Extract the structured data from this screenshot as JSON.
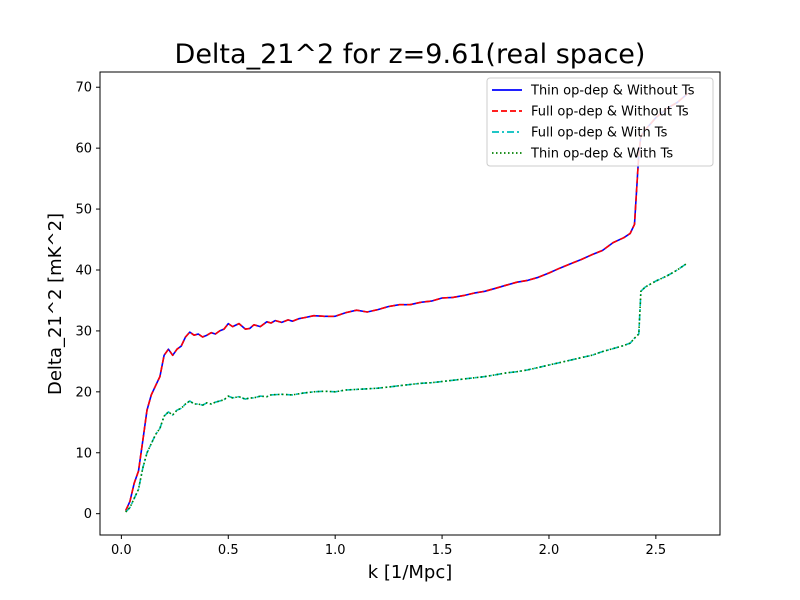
{
  "chart_data": {
    "type": "line",
    "title": "Delta_21^2 for z=9.61(real space)",
    "xlabel": "k [1/Mpc]",
    "ylabel": "Delta_21^2 [mK^2]",
    "xlim": [
      -0.1,
      2.8
    ],
    "ylim": [
      -3.5,
      72.5
    ],
    "xticks": [
      0.0,
      0.5,
      1.0,
      1.5,
      2.0,
      2.5
    ],
    "xtick_labels": [
      "0.0",
      "0.5",
      "1.0",
      "1.5",
      "2.0",
      "2.5"
    ],
    "yticks": [
      0,
      10,
      20,
      30,
      40,
      50,
      60,
      70
    ],
    "ytick_labels": [
      "0",
      "10",
      "20",
      "30",
      "40",
      "50",
      "60",
      "70"
    ],
    "grid": false,
    "legend_position": "top-right",
    "series": [
      {
        "name": "Thin op-dep & Without Ts",
        "color": "#0000ff",
        "dash": "solid",
        "x": [
          0.02,
          0.04,
          0.06,
          0.08,
          0.1,
          0.12,
          0.14,
          0.16,
          0.18,
          0.2,
          0.22,
          0.24,
          0.26,
          0.28,
          0.3,
          0.32,
          0.34,
          0.36,
          0.38,
          0.4,
          0.42,
          0.44,
          0.46,
          0.48,
          0.5,
          0.52,
          0.55,
          0.58,
          0.6,
          0.62,
          0.65,
          0.68,
          0.7,
          0.72,
          0.75,
          0.78,
          0.8,
          0.83,
          0.86,
          0.9,
          0.95,
          1.0,
          1.05,
          1.1,
          1.15,
          1.2,
          1.25,
          1.3,
          1.35,
          1.4,
          1.45,
          1.5,
          1.55,
          1.6,
          1.65,
          1.7,
          1.75,
          1.8,
          1.85,
          1.9,
          1.95,
          2.0,
          2.05,
          2.1,
          2.15,
          2.2,
          2.25,
          2.3,
          2.35,
          2.38,
          2.4,
          2.42,
          2.43,
          2.45,
          2.5,
          2.55,
          2.6,
          2.65
        ],
        "y": [
          0.5,
          2.0,
          5.0,
          7.0,
          12.0,
          17.0,
          19.5,
          21.0,
          22.5,
          26.0,
          27.0,
          26.0,
          27.0,
          27.5,
          29.0,
          29.8,
          29.3,
          29.5,
          29.0,
          29.3,
          29.7,
          29.5,
          30.0,
          30.3,
          31.2,
          30.7,
          31.2,
          30.3,
          30.4,
          31.0,
          30.7,
          31.5,
          31.3,
          31.7,
          31.4,
          31.8,
          31.6,
          32.0,
          32.2,
          32.5,
          32.4,
          32.4,
          33.0,
          33.4,
          33.1,
          33.5,
          34.0,
          34.3,
          34.3,
          34.7,
          34.9,
          35.4,
          35.5,
          35.8,
          36.2,
          36.5,
          37.0,
          37.5,
          38.0,
          38.3,
          38.8,
          39.5,
          40.3,
          41.0,
          41.7,
          42.5,
          43.2,
          44.5,
          45.3,
          46.0,
          47.5,
          59.0,
          62.0,
          63.0,
          65.0,
          66.5,
          67.5,
          69.0
        ]
      },
      {
        "name": "Full op-dep & Without Ts",
        "color": "#ff0000",
        "dash": "dashed",
        "x": [
          0.02,
          0.04,
          0.06,
          0.08,
          0.1,
          0.12,
          0.14,
          0.16,
          0.18,
          0.2,
          0.22,
          0.24,
          0.26,
          0.28,
          0.3,
          0.32,
          0.34,
          0.36,
          0.38,
          0.4,
          0.42,
          0.44,
          0.46,
          0.48,
          0.5,
          0.52,
          0.55,
          0.58,
          0.6,
          0.62,
          0.65,
          0.68,
          0.7,
          0.72,
          0.75,
          0.78,
          0.8,
          0.83,
          0.86,
          0.9,
          0.95,
          1.0,
          1.05,
          1.1,
          1.15,
          1.2,
          1.25,
          1.3,
          1.35,
          1.4,
          1.45,
          1.5,
          1.55,
          1.6,
          1.65,
          1.7,
          1.75,
          1.8,
          1.85,
          1.9,
          1.95,
          2.0,
          2.05,
          2.1,
          2.15,
          2.2,
          2.25,
          2.3,
          2.35,
          2.38,
          2.4,
          2.42,
          2.43,
          2.45,
          2.5,
          2.55,
          2.6,
          2.65
        ],
        "y": [
          0.5,
          2.0,
          5.0,
          7.0,
          12.0,
          17.0,
          19.5,
          21.0,
          22.5,
          26.0,
          27.0,
          26.0,
          27.0,
          27.5,
          29.0,
          29.8,
          29.3,
          29.5,
          29.0,
          29.3,
          29.7,
          29.5,
          30.0,
          30.3,
          31.2,
          30.7,
          31.2,
          30.3,
          30.4,
          31.0,
          30.7,
          31.5,
          31.3,
          31.7,
          31.4,
          31.8,
          31.6,
          32.0,
          32.2,
          32.5,
          32.4,
          32.4,
          33.0,
          33.4,
          33.1,
          33.5,
          34.0,
          34.3,
          34.3,
          34.7,
          34.9,
          35.4,
          35.5,
          35.8,
          36.2,
          36.5,
          37.0,
          37.5,
          38.0,
          38.3,
          38.8,
          39.5,
          40.3,
          41.0,
          41.7,
          42.5,
          43.2,
          44.5,
          45.3,
          46.0,
          47.5,
          59.0,
          62.0,
          63.0,
          65.0,
          66.5,
          67.5,
          69.0
        ]
      },
      {
        "name": "Full op-dep & With Ts",
        "color": "#00bfbf",
        "dash": "dashdot",
        "x": [
          0.02,
          0.04,
          0.06,
          0.08,
          0.1,
          0.12,
          0.14,
          0.16,
          0.18,
          0.2,
          0.22,
          0.24,
          0.26,
          0.28,
          0.3,
          0.32,
          0.34,
          0.36,
          0.38,
          0.4,
          0.42,
          0.44,
          0.46,
          0.48,
          0.5,
          0.52,
          0.55,
          0.58,
          0.6,
          0.62,
          0.65,
          0.68,
          0.7,
          0.75,
          0.8,
          0.85,
          0.9,
          0.95,
          1.0,
          1.05,
          1.1,
          1.15,
          1.2,
          1.25,
          1.3,
          1.35,
          1.4,
          1.45,
          1.5,
          1.55,
          1.6,
          1.65,
          1.7,
          1.75,
          1.8,
          1.85,
          1.9,
          1.95,
          2.0,
          2.05,
          2.1,
          2.15,
          2.2,
          2.25,
          2.3,
          2.35,
          2.38,
          2.4,
          2.42,
          2.43,
          2.45,
          2.5,
          2.55,
          2.6,
          2.65
        ],
        "y": [
          0.3,
          1.0,
          2.5,
          4.0,
          7.5,
          10.0,
          11.5,
          13.0,
          14.0,
          16.0,
          16.7,
          16.2,
          17.0,
          17.3,
          18.0,
          18.5,
          18.0,
          18.0,
          17.8,
          18.2,
          18.0,
          18.3,
          18.5,
          18.7,
          19.3,
          19.0,
          19.2,
          18.8,
          19.0,
          19.0,
          19.3,
          19.2,
          19.5,
          19.6,
          19.5,
          19.8,
          20.0,
          20.1,
          20.0,
          20.3,
          20.4,
          20.5,
          20.6,
          20.8,
          21.0,
          21.2,
          21.4,
          21.5,
          21.7,
          21.9,
          22.1,
          22.3,
          22.5,
          22.8,
          23.1,
          23.3,
          23.6,
          24.0,
          24.4,
          24.8,
          25.2,
          25.6,
          26.0,
          26.6,
          27.1,
          27.6,
          28.0,
          28.8,
          29.5,
          36.5,
          37.2,
          38.2,
          39.0,
          40.0,
          41.2
        ]
      },
      {
        "name": "Thin op-dep & With Ts",
        "color": "#008000",
        "dash": "dotted",
        "x": [
          0.02,
          0.04,
          0.06,
          0.08,
          0.1,
          0.12,
          0.14,
          0.16,
          0.18,
          0.2,
          0.22,
          0.24,
          0.26,
          0.28,
          0.3,
          0.32,
          0.34,
          0.36,
          0.38,
          0.4,
          0.42,
          0.44,
          0.46,
          0.48,
          0.5,
          0.52,
          0.55,
          0.58,
          0.6,
          0.62,
          0.65,
          0.68,
          0.7,
          0.75,
          0.8,
          0.85,
          0.9,
          0.95,
          1.0,
          1.05,
          1.1,
          1.15,
          1.2,
          1.25,
          1.3,
          1.35,
          1.4,
          1.45,
          1.5,
          1.55,
          1.6,
          1.65,
          1.7,
          1.75,
          1.8,
          1.85,
          1.9,
          1.95,
          2.0,
          2.05,
          2.1,
          2.15,
          2.2,
          2.25,
          2.3,
          2.35,
          2.38,
          2.4,
          2.42,
          2.43,
          2.45,
          2.5,
          2.55,
          2.6,
          2.65
        ],
        "y": [
          0.3,
          1.0,
          2.5,
          4.0,
          7.5,
          10.0,
          11.5,
          13.0,
          14.0,
          16.0,
          16.7,
          16.2,
          17.0,
          17.3,
          18.0,
          18.5,
          18.0,
          18.0,
          17.8,
          18.2,
          18.0,
          18.3,
          18.5,
          18.7,
          19.3,
          19.0,
          19.2,
          18.8,
          19.0,
          19.0,
          19.3,
          19.2,
          19.5,
          19.6,
          19.5,
          19.8,
          20.0,
          20.1,
          20.0,
          20.3,
          20.4,
          20.5,
          20.6,
          20.8,
          21.0,
          21.2,
          21.4,
          21.5,
          21.7,
          21.9,
          22.1,
          22.3,
          22.5,
          22.8,
          23.1,
          23.3,
          23.6,
          24.0,
          24.4,
          24.8,
          25.2,
          25.6,
          26.0,
          26.6,
          27.1,
          27.6,
          28.0,
          28.8,
          29.5,
          36.5,
          37.2,
          38.2,
          39.0,
          40.0,
          41.2
        ]
      }
    ]
  }
}
